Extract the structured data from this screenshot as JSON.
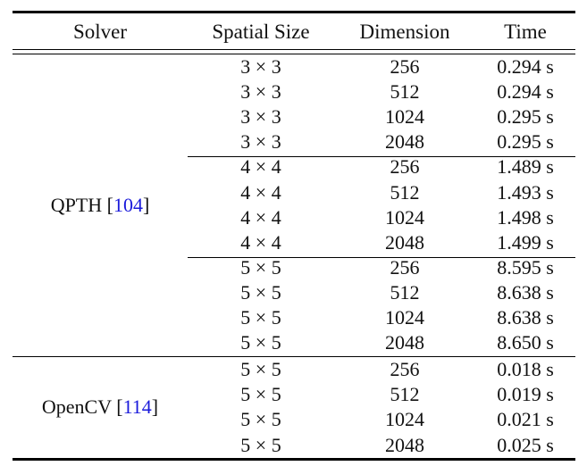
{
  "table": {
    "headers": {
      "solver": "Solver",
      "spatial": "Spatial Size",
      "dimension": "Dimension",
      "time": "Time"
    },
    "groups": [
      {
        "solver": "QPTH",
        "citation": "104",
        "blocks": [
          {
            "rows": [
              {
                "spatial": "3 × 3",
                "dimension": "256",
                "time": "0.294 s"
              },
              {
                "spatial": "3 × 3",
                "dimension": "512",
                "time": "0.294 s"
              },
              {
                "spatial": "3 × 3",
                "dimension": "1024",
                "time": "0.295 s"
              },
              {
                "spatial": "3 × 3",
                "dimension": "2048",
                "time": "0.295 s"
              }
            ]
          },
          {
            "rows": [
              {
                "spatial": "4 × 4",
                "dimension": "256",
                "time": "1.489 s"
              },
              {
                "spatial": "4 × 4",
                "dimension": "512",
                "time": "1.493 s"
              },
              {
                "spatial": "4 × 4",
                "dimension": "1024",
                "time": "1.498 s"
              },
              {
                "spatial": "4 × 4",
                "dimension": "2048",
                "time": "1.499 s"
              }
            ]
          },
          {
            "rows": [
              {
                "spatial": "5 × 5",
                "dimension": "256",
                "time": "8.595 s"
              },
              {
                "spatial": "5 × 5",
                "dimension": "512",
                "time": "8.638 s"
              },
              {
                "spatial": "5 × 5",
                "dimension": "1024",
                "time": "8.638 s"
              },
              {
                "spatial": "5 × 5",
                "dimension": "2048",
                "time": "8.650 s"
              }
            ]
          }
        ]
      },
      {
        "solver": "OpenCV",
        "citation": "114",
        "blocks": [
          {
            "rows": [
              {
                "spatial": "5 × 5",
                "dimension": "256",
                "time": "0.018 s"
              },
              {
                "spatial": "5 × 5",
                "dimension": "512",
                "time": "0.019 s"
              },
              {
                "spatial": "5 × 5",
                "dimension": "1024",
                "time": "0.021 s"
              },
              {
                "spatial": "5 × 5",
                "dimension": "2048",
                "time": "0.025 s"
              }
            ]
          }
        ]
      }
    ]
  }
}
